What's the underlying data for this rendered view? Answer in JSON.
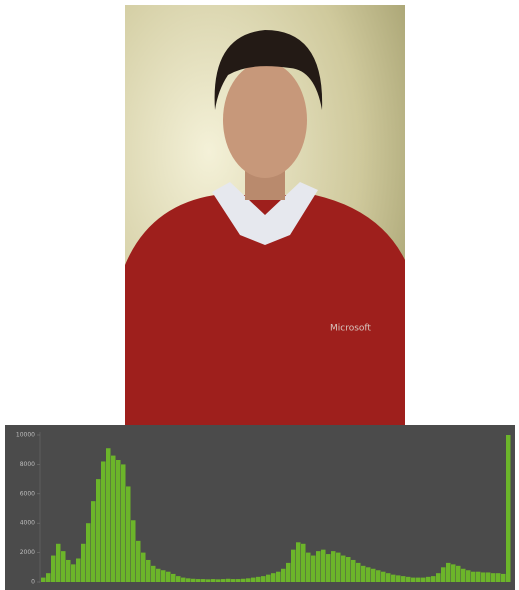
{
  "chart_data": {
    "type": "bar",
    "values": [
      300,
      600,
      1800,
      2600,
      2100,
      1500,
      1200,
      1600,
      2600,
      4000,
      5500,
      7000,
      8200,
      9100,
      8600,
      8300,
      8000,
      6500,
      4200,
      2800,
      2000,
      1500,
      1100,
      900,
      800,
      700,
      550,
      400,
      300,
      250,
      220,
      200,
      200,
      180,
      200,
      180,
      200,
      220,
      200,
      200,
      220,
      250,
      300,
      350,
      400,
      500,
      600,
      700,
      900,
      1300,
      2200,
      2700,
      2600,
      2000,
      1800,
      2100,
      2200,
      1900,
      2100,
      2000,
      1800,
      1700,
      1500,
      1300,
      1100,
      1000,
      900,
      800,
      700,
      600,
      500,
      450,
      400,
      350,
      300,
      300,
      300,
      350,
      400,
      600,
      1000,
      1300,
      1200,
      1100,
      900,
      800,
      700,
      700,
      650,
      650,
      600,
      600,
      550,
      10000
    ],
    "color": "#6cb52a",
    "ylim": [
      0,
      10000
    ],
    "yticks": [
      0,
      2000,
      4000,
      6000,
      8000,
      10000
    ]
  }
}
